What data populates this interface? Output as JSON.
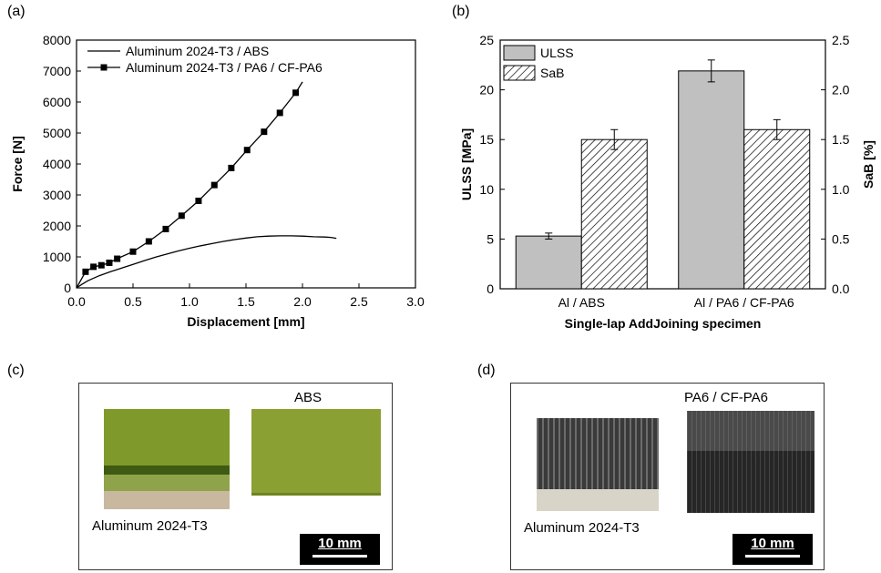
{
  "panels": {
    "a": "(a)",
    "b": "(b)",
    "c": "(c)",
    "d": "(d)"
  },
  "chart_data": [
    {
      "type": "line",
      "xlabel": "Displacement [mm]",
      "ylabel": "Force [N]",
      "xlim": [
        0.0,
        3.0
      ],
      "ylim": [
        0,
        8000
      ],
      "xticks": [
        "0.0",
        "0.5",
        "1.0",
        "1.5",
        "2.0",
        "2.5",
        "3.0"
      ],
      "yticks": [
        "0",
        "1000",
        "2000",
        "3000",
        "4000",
        "5000",
        "6000",
        "7000",
        "8000"
      ],
      "legend_position": "top-left",
      "series": [
        {
          "name": "Aluminum 2024-T3 / ABS",
          "color": "#000000",
          "markers": false,
          "x": [
            0.0,
            0.05,
            0.1,
            0.2,
            0.3,
            0.4,
            0.5,
            0.6,
            0.7,
            0.8,
            0.9,
            1.0,
            1.1,
            1.2,
            1.3,
            1.4,
            1.5,
            1.6,
            1.7,
            1.8,
            1.9,
            2.0,
            2.1,
            2.2,
            2.25,
            2.3
          ],
          "y": [
            0,
            120,
            230,
            390,
            520,
            640,
            760,
            880,
            990,
            1090,
            1190,
            1280,
            1360,
            1430,
            1500,
            1560,
            1610,
            1650,
            1670,
            1680,
            1680,
            1670,
            1650,
            1640,
            1630,
            1600
          ]
        },
        {
          "name": "Aluminum 2024-T3 / PA6 / CF-PA6",
          "color": "#000000",
          "markers": true,
          "x": [
            0.0,
            0.08,
            0.15,
            0.22,
            0.29,
            0.36,
            0.5,
            0.64,
            0.79,
            0.93,
            1.08,
            1.22,
            1.37,
            1.51,
            1.66,
            1.8,
            1.94,
            2.0
          ],
          "y": [
            0,
            520,
            680,
            730,
            810,
            940,
            1170,
            1500,
            1900,
            2330,
            2810,
            3320,
            3870,
            4450,
            5040,
            5650,
            6300,
            6650
          ]
        }
      ]
    },
    {
      "type": "bar",
      "xlabel": "Single-lap AddJoining specimen",
      "ylabel": "ULSS [MPa]",
      "y2label": "SaB [%]",
      "categories": [
        "Al / ABS",
        "Al / PA6 / CF-PA6"
      ],
      "ylim": [
        0,
        25
      ],
      "y2lim": [
        0,
        2.5
      ],
      "yticks": [
        "0",
        "5",
        "10",
        "15",
        "20",
        "25"
      ],
      "y2ticks": [
        "0.0",
        "0.5",
        "1.0",
        "1.5",
        "2.0",
        "2.5"
      ],
      "legend_position": "top-left",
      "series": [
        {
          "name": "ULSS",
          "axis": "left",
          "fill": "#c0c0c0",
          "values": [
            5.3,
            21.9
          ],
          "errors": [
            0.3,
            1.1
          ]
        },
        {
          "name": "SaB",
          "axis": "right",
          "fill": "hatch",
          "values": [
            1.5,
            1.6
          ],
          "errors": [
            0.1,
            0.1
          ]
        }
      ]
    }
  ],
  "photo_c": {
    "title": "ABS",
    "caption": "Aluminum 2024-T3",
    "scale": "10 mm"
  },
  "photo_d": {
    "title": "PA6 / CF-PA6",
    "caption": "Aluminum 2024-T3",
    "scale": "10 mm"
  }
}
